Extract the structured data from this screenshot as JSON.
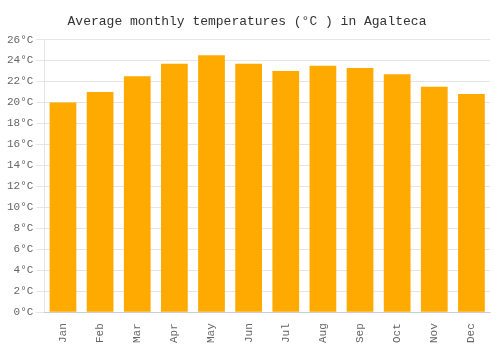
{
  "chart_data": {
    "type": "bar",
    "title": "Average monthly temperatures (°C ) in Agalteca",
    "categories": [
      "Jan",
      "Feb",
      "Mar",
      "Apr",
      "May",
      "Jun",
      "Jul",
      "Aug",
      "Sep",
      "Oct",
      "Nov",
      "Dec"
    ],
    "values": [
      20.0,
      21.0,
      22.5,
      23.7,
      24.5,
      23.7,
      23.0,
      23.5,
      23.3,
      22.7,
      21.5,
      20.8
    ],
    "color": "#FFAA00",
    "ylim": [
      0,
      26
    ],
    "yticks": [
      {
        "value": 0,
        "label": "0°C"
      },
      {
        "value": 2,
        "label": "2°C"
      },
      {
        "value": 4,
        "label": "4°C"
      },
      {
        "value": 6,
        "label": "6°C"
      },
      {
        "value": 8,
        "label": "8°C"
      },
      {
        "value": 10,
        "label": "10°C"
      },
      {
        "value": 12,
        "label": "12°C"
      },
      {
        "value": 14,
        "label": "14°C"
      },
      {
        "value": 16,
        "label": "16°C"
      },
      {
        "value": 18,
        "label": "18°C"
      },
      {
        "value": 20,
        "label": "20°C"
      },
      {
        "value": 22,
        "label": "22°C"
      },
      {
        "value": 24,
        "label": "24°C"
      },
      {
        "value": 26,
        "label": "26°C"
      }
    ],
    "grid": true
  }
}
